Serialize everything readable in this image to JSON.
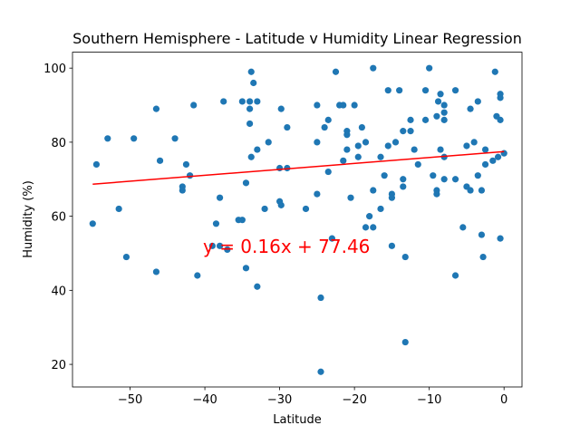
{
  "chart_data": {
    "type": "scatter",
    "title": "Southern Hemisphere - Latitude v Humidity Linear Regression",
    "x_label": "Latitude",
    "y_label": "Humidity (%)",
    "annotation": "y = 0.16x + 77.46",
    "annotation_color": "#ff0000",
    "color": "#1f77b4",
    "grid": false,
    "xlim": [
      -57.7,
      2.4
    ],
    "ylim": [
      13.9,
      104.3
    ],
    "xticks": [
      {
        "value": -50,
        "label": "−50"
      },
      {
        "value": -40,
        "label": "−40"
      },
      {
        "value": -30,
        "label": "−30"
      },
      {
        "value": -20,
        "label": "−20"
      },
      {
        "value": -10,
        "label": "−10"
      },
      0
    ],
    "yticks": [
      20,
      40,
      60,
      80,
      100
    ],
    "trend_line": {
      "color": "#ff0000",
      "x": [
        -55,
        0
      ],
      "y": [
        68.66,
        77.46
      ]
    },
    "x": [
      -55,
      -54.5,
      -53,
      -51.5,
      -50.5,
      -49.5,
      -46.5,
      -46.5,
      -46,
      -44,
      -43,
      -43,
      -42.5,
      -42,
      -41.5,
      -41,
      -39,
      -38.5,
      -38,
      -38,
      -37.5,
      -37,
      -35.5,
      -35,
      -35,
      -34.5,
      -34.5,
      -34,
      -34,
      -34,
      -33.8,
      -33.8,
      -33.5,
      -33,
      -33,
      -33,
      -32,
      -31.5,
      -30,
      -30,
      -29.8,
      -29.8,
      -29,
      -29,
      -26.5,
      -25,
      -25,
      -25,
      -24.5,
      -24.5,
      -24,
      -23.5,
      -23.5,
      -23,
      -22.5,
      -22,
      -21.5,
      -21.5,
      -21,
      -21,
      -21,
      -20.5,
      -20,
      -19.5,
      -19.5,
      -19,
      -18.5,
      -18.5,
      -18,
      -17.5,
      -17.5,
      -17.5,
      -16.5,
      -16.5,
      -16,
      -15.5,
      -15.5,
      -15,
      -15,
      -15,
      -14.5,
      -14,
      -13.5,
      -13.5,
      -13.5,
      -13.2,
      -13.2,
      -12.5,
      -12.5,
      -12,
      -11.5,
      -10.5,
      -10.5,
      -10,
      -9.5,
      -9,
      -9,
      -9,
      -8.8,
      -8.5,
      -8.5,
      -8,
      -8,
      -8,
      -8,
      -8,
      -6.5,
      -6.5,
      -6.5,
      -5.5,
      -5,
      -5,
      -4.5,
      -4.5,
      -4,
      -3.5,
      -3.5,
      -3,
      -3,
      -2.8,
      -2.5,
      -2.5,
      -1.5,
      -1.2,
      -1,
      -0.8,
      -0.5,
      -0.5,
      -0.5,
      -0.5,
      0
    ],
    "values": [
      58,
      74,
      81,
      62,
      49,
      81,
      89,
      45,
      75,
      81,
      68,
      67,
      74,
      71,
      90,
      44,
      52,
      58,
      65,
      52,
      91,
      51,
      59,
      91,
      59,
      46,
      69,
      91,
      89,
      85,
      99,
      76,
      96,
      91,
      78,
      41,
      62,
      80,
      73,
      64,
      63,
      89,
      84,
      73,
      62,
      80,
      90,
      66,
      38,
      18,
      84,
      72,
      86,
      54,
      99,
      90,
      90,
      75,
      82,
      83,
      78,
      65,
      90,
      79,
      76,
      84,
      80,
      57,
      60,
      67,
      57,
      100,
      62,
      76,
      71,
      94,
      79,
      52,
      65,
      66,
      80,
      94,
      83,
      70,
      68,
      49,
      26,
      86,
      83,
      78,
      74,
      94,
      86,
      100,
      71,
      87,
      66,
      67,
      91,
      78,
      93,
      86,
      88,
      90,
      76,
      70,
      94,
      70,
      44,
      57,
      79,
      68,
      89,
      67,
      80,
      91,
      71,
      55,
      67,
      49,
      78,
      74,
      75,
      99,
      87,
      76,
      93,
      92,
      86,
      54,
      77
    ]
  }
}
